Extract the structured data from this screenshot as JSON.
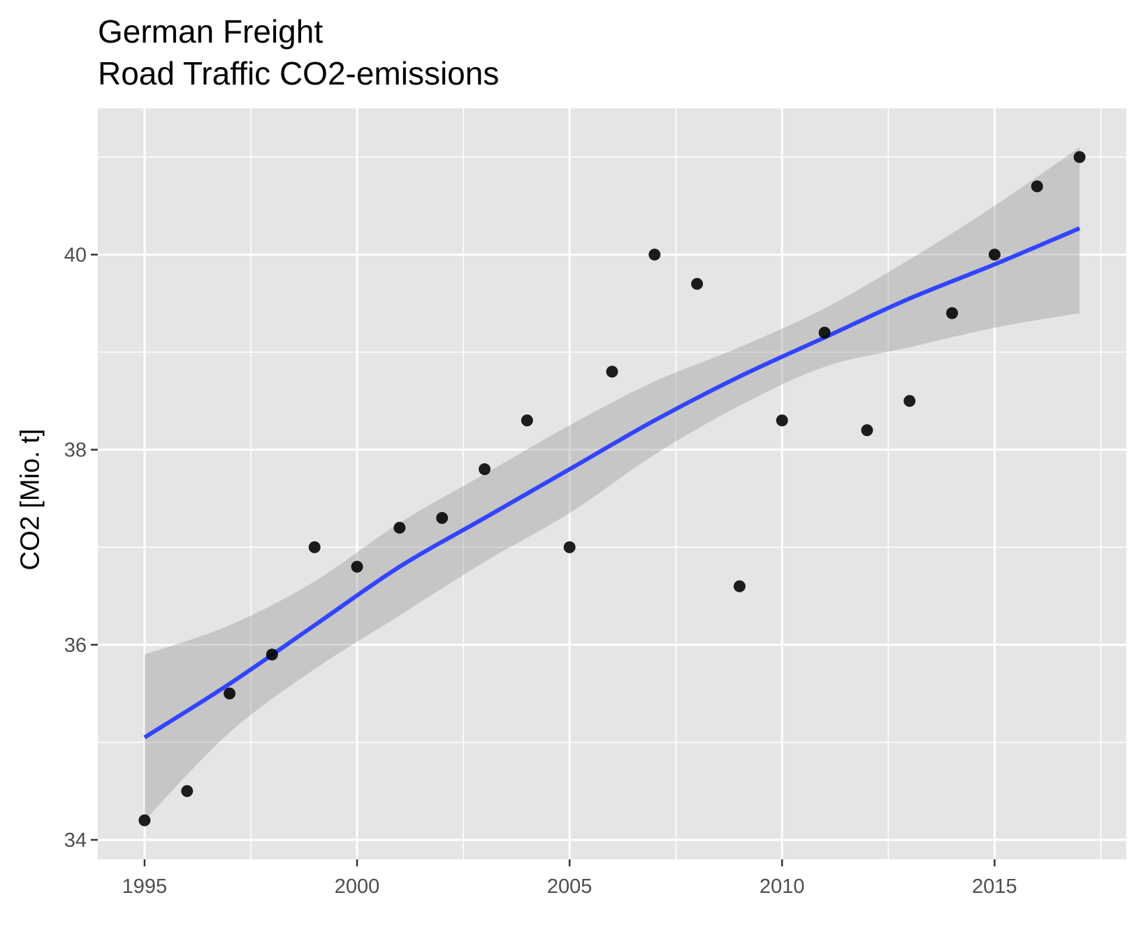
{
  "chart_data": {
    "type": "scatter",
    "title": "German Freight",
    "subtitle": "Road Traffic CO2-emissions",
    "xlabel": "",
    "ylabel": "CO2 [Mio. t]",
    "xlim": [
      1993.9,
      2018.1
    ],
    "ylim": [
      33.8,
      41.5
    ],
    "x_ticks": [
      1995,
      2000,
      2005,
      2010,
      2015
    ],
    "y_ticks": [
      34,
      36,
      38,
      40
    ],
    "grid": true,
    "legend": "none",
    "colors": {
      "panel": "#e5e5e5",
      "grid": "#ffffff",
      "point": "#000000",
      "smooth": "#3344ff",
      "ribbon": "#999999"
    },
    "series": [
      {
        "type": "scatter",
        "x": [
          1995,
          1996,
          1997,
          1998,
          1999,
          2000,
          2001,
          2002,
          2003,
          2004,
          2005,
          2006,
          2007,
          2008,
          2009,
          2010,
          2011,
          2012,
          2013,
          2014,
          2015,
          2016,
          2017
        ],
        "y": [
          34.2,
          34.5,
          35.5,
          35.9,
          37.0,
          36.8,
          37.2,
          37.3,
          37.8,
          38.3,
          37.0,
          38.8,
          40.0,
          39.7,
          36.6,
          38.3,
          39.2,
          38.2,
          38.5,
          39.4,
          40.0,
          40.7,
          41.0
        ]
      },
      {
        "type": "smooth",
        "x": [
          1995,
          1997,
          1999,
          2001,
          2003,
          2005,
          2007,
          2009,
          2011,
          2013,
          2015,
          2017
        ],
        "y": [
          35.05,
          35.6,
          36.2,
          36.8,
          37.3,
          37.8,
          38.3,
          38.75,
          39.15,
          39.55,
          39.9,
          40.27
        ],
        "ci_lower": [
          34.2,
          35.1,
          35.75,
          36.3,
          36.85,
          37.35,
          37.95,
          38.45,
          38.85,
          39.05,
          39.25,
          39.4
        ],
        "ci_upper": [
          35.9,
          36.2,
          36.65,
          37.25,
          37.75,
          38.25,
          38.7,
          39.05,
          39.45,
          39.95,
          40.5,
          41.1
        ]
      }
    ]
  }
}
